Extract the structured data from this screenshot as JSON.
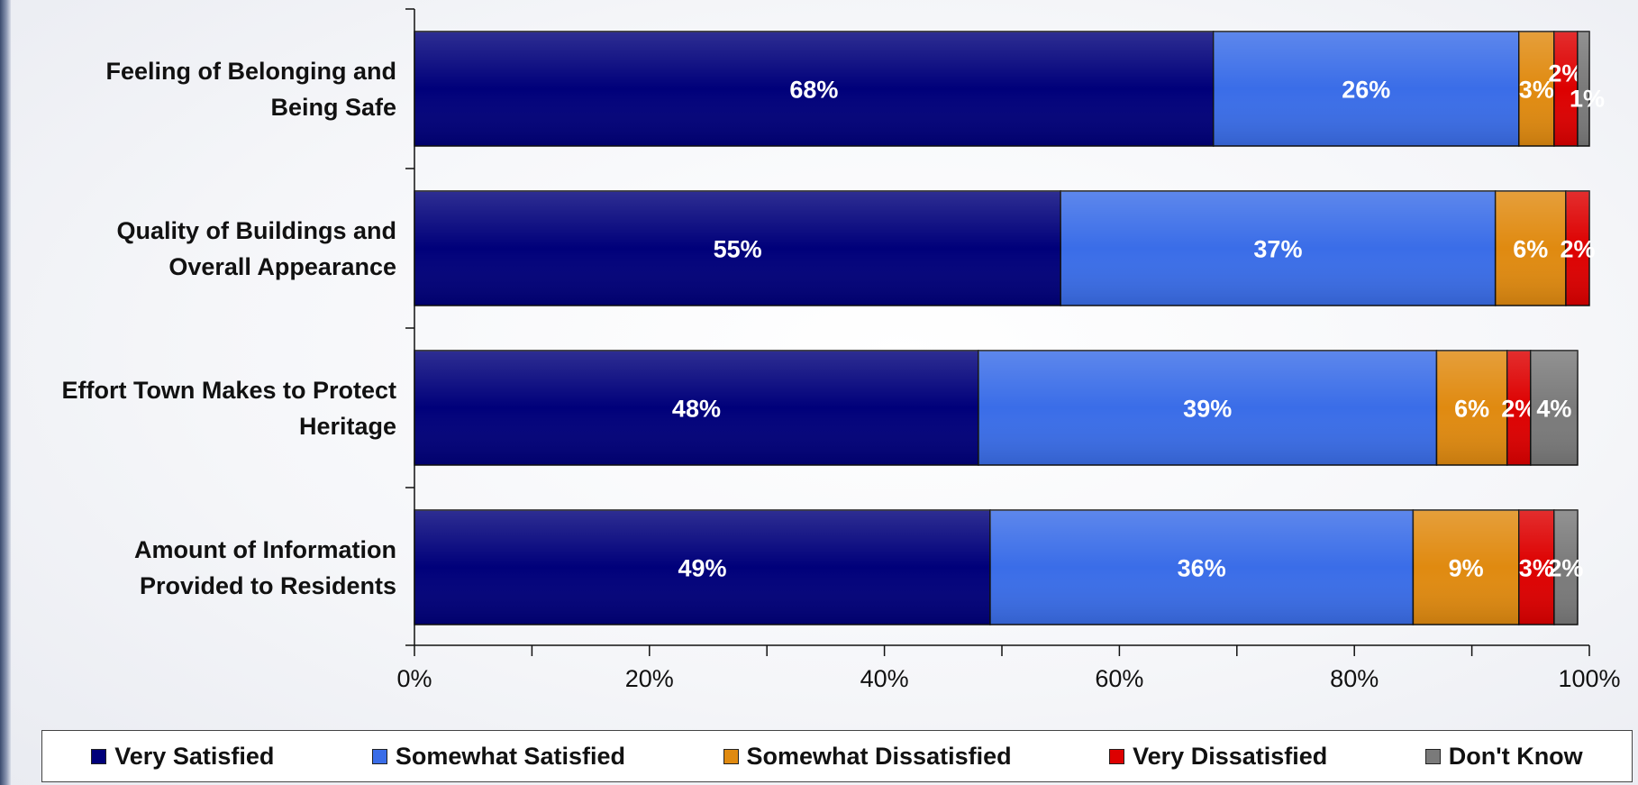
{
  "chart_data": {
    "type": "bar",
    "orientation": "horizontal",
    "stacked": true,
    "categories": [
      "Feeling of Belonging and Being Safe",
      "Quality of Buildings and Overall Appearance",
      "Effort Town Makes to Protect Heritage",
      "Amount of Information Provided to Residents"
    ],
    "category_lines": [
      [
        "Feeling of Belonging and",
        "Being Safe"
      ],
      [
        "Quality of Buildings and",
        "Overall Appearance"
      ],
      [
        "Effort Town Makes to Protect",
        "Heritage"
      ],
      [
        "Amount of Information",
        "Provided to Residents"
      ]
    ],
    "series": [
      {
        "name": "Very Satisfied",
        "color": "#00007a",
        "values": [
          68,
          55,
          48,
          49
        ]
      },
      {
        "name": "Somewhat Satisfied",
        "color": "#3a6de8",
        "values": [
          26,
          37,
          39,
          36
        ]
      },
      {
        "name": "Somewhat Dissatisfied",
        "color": "#e08a10",
        "values": [
          3,
          6,
          6,
          9
        ]
      },
      {
        "name": "Very Dissatisfied",
        "color": "#dd0000",
        "values": [
          2,
          2,
          2,
          3
        ]
      },
      {
        "name": "Don't Know",
        "color": "#7a7a7a",
        "values": [
          1,
          0,
          4,
          2
        ]
      }
    ],
    "data_labels": [
      [
        "68%",
        "26%",
        "3%",
        "2%",
        "1%"
      ],
      [
        "55%",
        "37%",
        "6%",
        "2%",
        ""
      ],
      [
        "48%",
        "39%",
        "6%",
        "2%",
        "4%"
      ],
      [
        "49%",
        "36%",
        "9%",
        "3%",
        "2%"
      ]
    ],
    "xlim": [
      0,
      100
    ],
    "x_ticks": [
      "0%",
      "20%",
      "40%",
      "60%",
      "80%",
      "100%"
    ],
    "legend_position": "bottom",
    "xlabel": "",
    "ylabel": ""
  }
}
